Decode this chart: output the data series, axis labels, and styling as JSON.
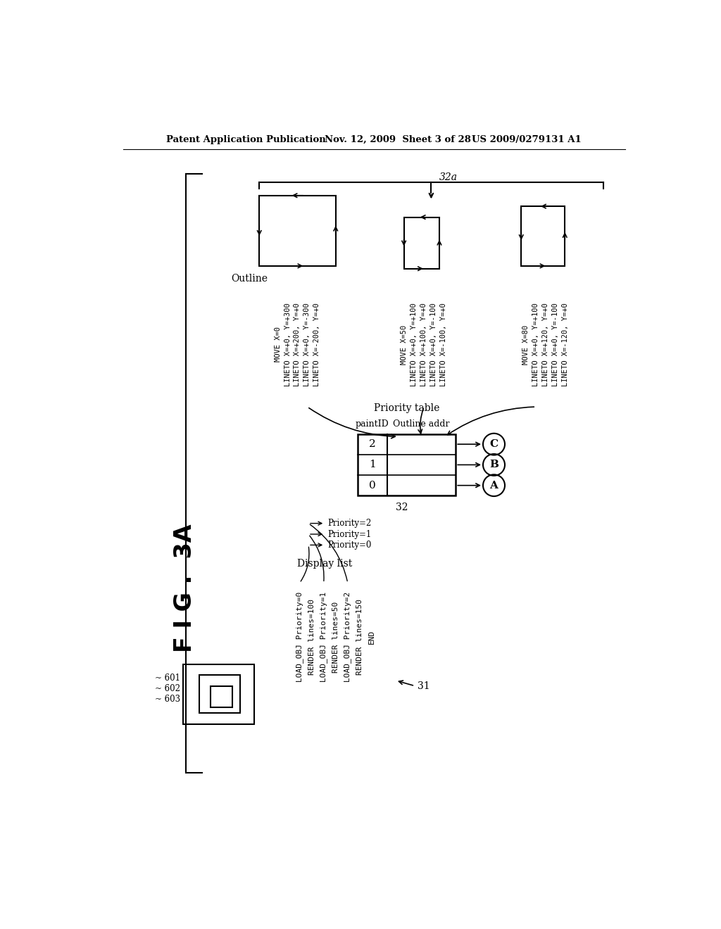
{
  "bg_color": "#ffffff",
  "header_left": "Patent Application Publication",
  "header_mid": "Nov. 12, 2009  Sheet 3 of 28",
  "header_right": "US 2009/0279131 A1",
  "fig_label": "F I G .  3A",
  "label_32a": "32a",
  "label_32": "32",
  "label_31": "31",
  "outline_label": "Outline",
  "priority_table_label": "Priority table",
  "paintID_label": "paintID",
  "outline_addr_label": "Outline addr",
  "display_list_label": "Display list",
  "display_list_lines": [
    "LOAD_OBJ Priority=0",
    "RENDER lines=100",
    "LOAD_OBJ Priority=1",
    "RENDER lines=50",
    "LOAD_OBJ Priority=2",
    "RENDER lines=150",
    "END"
  ],
  "outline_A_lines": [
    "MOVE X=0",
    "LINETO X=+0, Y=+300",
    "LINETO X=+200, Y=+0",
    "LINETO X=+0, Y=-300",
    "LINETO X=-200, Y=+0"
  ],
  "outline_B_lines": [
    "MOVE X=50",
    "LINETO X=+0, Y=+100",
    "LINETO X=+100, Y=+0",
    "LINETO X=+0, Y=-100",
    "LINETO X=-100, Y=+0"
  ],
  "outline_C_lines": [
    "MOVE X=80",
    "LINETO X=+0, Y=+100",
    "LINETO X=+120, Y=+0",
    "LINETO X=+0, Y=-100",
    "LINETO X=-120, Y=+0"
  ],
  "priority_rows": [
    "2",
    "1",
    "0"
  ],
  "circle_labels": [
    "C",
    "B",
    "A"
  ],
  "obj_labels": [
    "601",
    "602",
    "603"
  ],
  "priority_labels": [
    "Priority=2",
    "Priority=1",
    "Priority=0"
  ]
}
